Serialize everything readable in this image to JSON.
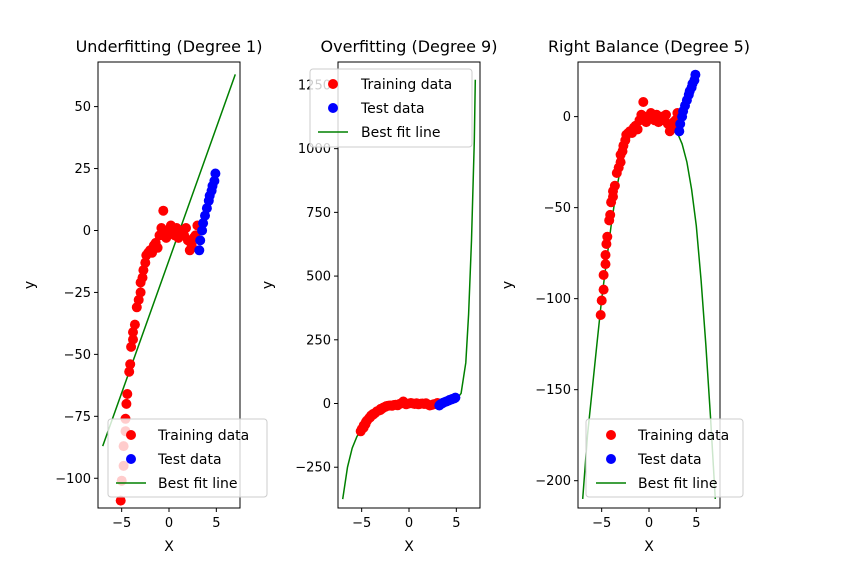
{
  "figure": {
    "background": "#ffffff"
  },
  "colors": {
    "training": "#ff0000",
    "test": "#0000ff",
    "fit": "#008000"
  },
  "chart_data": [
    {
      "type": "scatter",
      "title": "Underfitting (Degree 1)",
      "xlabel": "X",
      "ylabel": "y",
      "xlim": [
        -7.5,
        7.5
      ],
      "ylim": [
        -112,
        68
      ],
      "xticks": [
        -5,
        0,
        5
      ],
      "yticks": [
        -100,
        -75,
        -50,
        -25,
        0,
        25,
        50
      ],
      "grid": false,
      "legend": {
        "placement": "lower-right",
        "entries": [
          "Training data",
          "Test data",
          "Best fit line"
        ]
      },
      "series": [
        {
          "name": "Training data",
          "kind": "scatter",
          "color": "#ff0000",
          "points": [
            [
              -5.1,
              -109
            ],
            [
              -5.0,
              -101
            ],
            [
              -4.8,
              -95
            ],
            [
              -4.8,
              -87
            ],
            [
              -4.6,
              -81
            ],
            [
              -4.6,
              -76
            ],
            [
              -4.5,
              -70
            ],
            [
              -4.4,
              -66
            ],
            [
              -4.2,
              -57
            ],
            [
              -4.1,
              -54
            ],
            [
              -4.0,
              -47
            ],
            [
              -3.8,
              -44
            ],
            [
              -3.8,
              -41
            ],
            [
              -3.6,
              -38
            ],
            [
              -3.4,
              -31
            ],
            [
              -3.2,
              -28
            ],
            [
              -3.0,
              -25
            ],
            [
              -3.0,
              -21
            ],
            [
              -2.8,
              -19
            ],
            [
              -2.7,
              -16
            ],
            [
              -2.5,
              -13
            ],
            [
              -2.4,
              -10
            ],
            [
              -2.2,
              -9
            ],
            [
              -2.0,
              -8
            ],
            [
              -1.8,
              -9
            ],
            [
              -1.6,
              -6
            ],
            [
              -1.4,
              -5
            ],
            [
              -1.2,
              -7
            ],
            [
              -1.0,
              -2
            ],
            [
              -0.8,
              1
            ],
            [
              -0.6,
              8
            ],
            [
              -0.5,
              0
            ],
            [
              -0.3,
              -3
            ],
            [
              0.0,
              0
            ],
            [
              0.2,
              2
            ],
            [
              0.4,
              0
            ],
            [
              0.6,
              -2
            ],
            [
              0.8,
              1
            ],
            [
              1.0,
              -3
            ],
            [
              1.2,
              -1
            ],
            [
              1.4,
              0
            ],
            [
              1.6,
              -2
            ],
            [
              1.8,
              1
            ],
            [
              2.0,
              -4
            ],
            [
              2.2,
              -8
            ],
            [
              2.4,
              -6
            ],
            [
              2.6,
              -3
            ],
            [
              2.8,
              -2
            ],
            [
              3.0,
              2
            ]
          ]
        },
        {
          "name": "Test data",
          "kind": "scatter",
          "color": "#0000ff",
          "points": [
            [
              3.2,
              -8
            ],
            [
              3.3,
              -4
            ],
            [
              3.5,
              0
            ],
            [
              3.6,
              3
            ],
            [
              3.8,
              6
            ],
            [
              4.0,
              9
            ],
            [
              4.2,
              12
            ],
            [
              4.3,
              14
            ],
            [
              4.5,
              16
            ],
            [
              4.6,
              18
            ],
            [
              4.8,
              20
            ],
            [
              4.9,
              23
            ]
          ]
        },
        {
          "name": "Best fit line",
          "kind": "line",
          "color": "#008000",
          "x": [
            -7.0,
            7.0
          ],
          "y": [
            -87,
            63
          ]
        }
      ]
    },
    {
      "type": "scatter",
      "title": "Overfitting (Degree 9)",
      "xlabel": "X",
      "ylabel": "y",
      "xlim": [
        -7.5,
        7.5
      ],
      "ylim": [
        -410,
        1340
      ],
      "xticks": [
        -5,
        0,
        5
      ],
      "yticks": [
        -250,
        0,
        250,
        500,
        750,
        1000,
        1250
      ],
      "grid": false,
      "legend": {
        "placement": "upper-left",
        "entries": [
          "Training data",
          "Test data",
          "Best fit line"
        ]
      },
      "series": [
        {
          "name": "Training data",
          "kind": "scatter",
          "color": "#ff0000",
          "points": [
            [
              -5.1,
              -109
            ],
            [
              -5.0,
              -101
            ],
            [
              -4.8,
              -95
            ],
            [
              -4.8,
              -87
            ],
            [
              -4.6,
              -81
            ],
            [
              -4.6,
              -76
            ],
            [
              -4.5,
              -70
            ],
            [
              -4.4,
              -66
            ],
            [
              -4.2,
              -57
            ],
            [
              -4.1,
              -54
            ],
            [
              -4.0,
              -47
            ],
            [
              -3.8,
              -44
            ],
            [
              -3.8,
              -41
            ],
            [
              -3.6,
              -38
            ],
            [
              -3.4,
              -31
            ],
            [
              -3.2,
              -28
            ],
            [
              -3.0,
              -25
            ],
            [
              -3.0,
              -21
            ],
            [
              -2.8,
              -19
            ],
            [
              -2.7,
              -16
            ],
            [
              -2.5,
              -13
            ],
            [
              -2.4,
              -10
            ],
            [
              -2.2,
              -9
            ],
            [
              -2.0,
              -8
            ],
            [
              -1.8,
              -9
            ],
            [
              -1.6,
              -6
            ],
            [
              -1.4,
              -5
            ],
            [
              -1.2,
              -7
            ],
            [
              -1.0,
              -2
            ],
            [
              -0.8,
              1
            ],
            [
              -0.6,
              8
            ],
            [
              -0.5,
              0
            ],
            [
              -0.3,
              -3
            ],
            [
              0.0,
              0
            ],
            [
              0.2,
              2
            ],
            [
              0.4,
              0
            ],
            [
              0.6,
              -2
            ],
            [
              0.8,
              1
            ],
            [
              1.0,
              -3
            ],
            [
              1.2,
              -1
            ],
            [
              1.4,
              0
            ],
            [
              1.6,
              -2
            ],
            [
              1.8,
              1
            ],
            [
              2.0,
              -4
            ],
            [
              2.2,
              -8
            ],
            [
              2.4,
              -6
            ],
            [
              2.6,
              -3
            ],
            [
              2.8,
              -2
            ],
            [
              3.0,
              2
            ]
          ]
        },
        {
          "name": "Test data",
          "kind": "scatter",
          "color": "#0000ff",
          "points": [
            [
              3.2,
              -8
            ],
            [
              3.3,
              -4
            ],
            [
              3.5,
              0
            ],
            [
              3.6,
              3
            ],
            [
              3.8,
              6
            ],
            [
              4.0,
              9
            ],
            [
              4.2,
              12
            ],
            [
              4.3,
              14
            ],
            [
              4.5,
              16
            ],
            [
              4.6,
              18
            ],
            [
              4.8,
              20
            ],
            [
              4.9,
              23
            ]
          ]
        },
        {
          "name": "Best fit line",
          "kind": "line",
          "color": "#008000",
          "x": [
            -7.0,
            -6.5,
            -6.0,
            -5.5,
            -5.0,
            -4.5,
            -4.0,
            -3.5,
            -3.0,
            -2.5,
            -2.0,
            -1.5,
            -1.0,
            -0.5,
            0.0,
            0.5,
            1.0,
            1.5,
            2.0,
            2.5,
            3.0,
            3.5,
            4.0,
            4.5,
            5.0,
            5.5,
            6.0,
            6.3,
            6.6,
            6.9,
            7.0
          ],
          "y": [
            -375,
            -250,
            -175,
            -130,
            -100,
            -76,
            -55,
            -38,
            -25,
            -16,
            -10,
            -6,
            -3,
            -2,
            0,
            0,
            -1,
            -2,
            -3,
            -4,
            -4,
            -3,
            0,
            6,
            15,
            40,
            160,
            350,
            640,
            1030,
            1270
          ]
        }
      ]
    },
    {
      "type": "scatter",
      "title": "Right Balance (Degree 5)",
      "xlabel": "X",
      "ylabel": "y",
      "xlim": [
        -7.5,
        7.5
      ],
      "ylim": [
        -215,
        30
      ],
      "xticks": [
        -5,
        0,
        5
      ],
      "yticks": [
        -200,
        -150,
        -100,
        -50,
        0
      ],
      "grid": false,
      "legend": {
        "placement": "lower-right",
        "entries": [
          "Training data",
          "Test data",
          "Best fit line"
        ]
      },
      "series": [
        {
          "name": "Training data",
          "kind": "scatter",
          "color": "#ff0000",
          "points": [
            [
              -5.1,
              -109
            ],
            [
              -5.0,
              -101
            ],
            [
              -4.8,
              -95
            ],
            [
              -4.8,
              -87
            ],
            [
              -4.6,
              -81
            ],
            [
              -4.6,
              -76
            ],
            [
              -4.5,
              -70
            ],
            [
              -4.4,
              -66
            ],
            [
              -4.2,
              -57
            ],
            [
              -4.1,
              -54
            ],
            [
              -4.0,
              -47
            ],
            [
              -3.8,
              -44
            ],
            [
              -3.8,
              -41
            ],
            [
              -3.6,
              -38
            ],
            [
              -3.4,
              -31
            ],
            [
              -3.2,
              -28
            ],
            [
              -3.0,
              -25
            ],
            [
              -3.0,
              -21
            ],
            [
              -2.8,
              -19
            ],
            [
              -2.7,
              -16
            ],
            [
              -2.5,
              -13
            ],
            [
              -2.4,
              -10
            ],
            [
              -2.2,
              -9
            ],
            [
              -2.0,
              -8
            ],
            [
              -1.8,
              -9
            ],
            [
              -1.6,
              -6
            ],
            [
              -1.4,
              -5
            ],
            [
              -1.2,
              -7
            ],
            [
              -1.0,
              -2
            ],
            [
              -0.8,
              1
            ],
            [
              -0.6,
              8
            ],
            [
              -0.5,
              0
            ],
            [
              -0.3,
              -3
            ],
            [
              0.0,
              0
            ],
            [
              0.2,
              2
            ],
            [
              0.4,
              0
            ],
            [
              0.6,
              -2
            ],
            [
              0.8,
              1
            ],
            [
              1.0,
              -3
            ],
            [
              1.2,
              -1
            ],
            [
              1.4,
              0
            ],
            [
              1.6,
              -2
            ],
            [
              1.8,
              1
            ],
            [
              2.0,
              -4
            ],
            [
              2.2,
              -8
            ],
            [
              2.4,
              -6
            ],
            [
              2.6,
              -3
            ],
            [
              2.8,
              -2
            ],
            [
              3.0,
              2
            ]
          ]
        },
        {
          "name": "Test data",
          "kind": "scatter",
          "color": "#0000ff",
          "points": [
            [
              3.2,
              -8
            ],
            [
              3.3,
              -4
            ],
            [
              3.5,
              0
            ],
            [
              3.6,
              3
            ],
            [
              3.8,
              6
            ],
            [
              4.0,
              9
            ],
            [
              4.2,
              12
            ],
            [
              4.3,
              14
            ],
            [
              4.5,
              16
            ],
            [
              4.6,
              18
            ],
            [
              4.8,
              20
            ],
            [
              4.9,
              23
            ]
          ]
        },
        {
          "name": "Best fit line",
          "kind": "line",
          "color": "#008000",
          "x": [
            -7.0,
            -6.5,
            -6.0,
            -5.5,
            -5.0,
            -4.5,
            -4.0,
            -3.5,
            -3.0,
            -2.5,
            -2.0,
            -1.5,
            -1.0,
            -0.5,
            0.0,
            0.5,
            1.0,
            1.5,
            2.0,
            2.5,
            3.0,
            3.5,
            4.0,
            4.5,
            5.0,
            5.5,
            6.0,
            6.5,
            7.0
          ],
          "y": [
            -210,
            -175,
            -150,
            -125,
            -100,
            -80,
            -60,
            -42,
            -28,
            -18,
            -11,
            -6,
            -3,
            -2,
            -2,
            -2,
            -2,
            -2,
            -3,
            -5,
            -9,
            -15,
            -25,
            -40,
            -60,
            -90,
            -125,
            -165,
            -210
          ]
        }
      ]
    }
  ]
}
